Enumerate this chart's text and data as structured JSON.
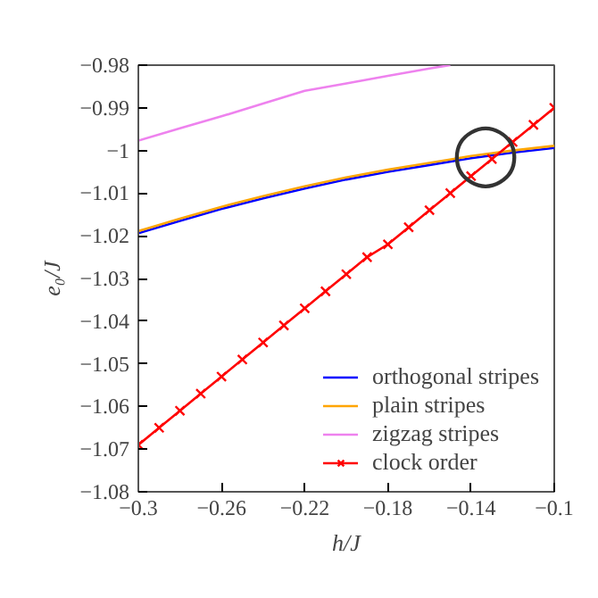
{
  "chart_data": {
    "type": "line",
    "xlabel": "h/J",
    "ylabel": "e₀/J",
    "x": [
      -0.3,
      -0.28,
      -0.26,
      -0.24,
      -0.22,
      -0.2,
      -0.18,
      -0.16,
      -0.14,
      -0.12,
      -0.1
    ],
    "series": [
      {
        "name": "orthogonal stripes",
        "color": "#0000ff",
        "values": [
          -1.0194,
          -1.0165,
          -1.0137,
          -1.0112,
          -1.0089,
          -1.0068,
          -1.005,
          -1.0034,
          -1.0018,
          -1.0005,
          -0.9994
        ]
      },
      {
        "name": "plain stripes",
        "color": "#ffa500",
        "values": [
          -1.0189,
          -1.016,
          -1.0132,
          -1.0107,
          -1.0084,
          -1.0063,
          -1.0045,
          -1.0029,
          -1.0013,
          -1.0,
          -0.9989
        ]
      },
      {
        "name": "zigzag stripes",
        "color": "#ee82ee",
        "x": [
          -0.3,
          -0.28,
          -0.26,
          -0.24,
          -0.22,
          -0.2,
          -0.18,
          -0.16,
          -0.15
        ],
        "values": [
          -0.9977,
          -0.9948,
          -0.992,
          -0.989,
          -0.986,
          -0.9843,
          -0.9825,
          -0.9808,
          -0.98
        ]
      },
      {
        "name": "clock order",
        "color": "#ff0000",
        "marker": "cross",
        "x": [
          -0.3,
          -0.29,
          -0.28,
          -0.27,
          -0.26,
          -0.25,
          -0.24,
          -0.23,
          -0.22,
          -0.21,
          -0.2,
          -0.19,
          -0.18,
          -0.17,
          -0.16,
          -0.15,
          -0.14,
          -0.13,
          -0.12,
          -0.11,
          -0.1
        ],
        "values": [
          -1.069,
          -1.065,
          -1.061,
          -1.057,
          -1.053,
          -1.049,
          -1.045,
          -1.041,
          -1.037,
          -1.033,
          -1.029,
          -1.025,
          -1.022,
          -1.018,
          -1.014,
          -1.01,
          -1.006,
          -1.002,
          -0.998,
          -0.994,
          -0.99
        ]
      }
    ],
    "annotations": [
      {
        "text": "◯",
        "x": -0.133,
        "y": -1.0008
      }
    ],
    "xlim": [
      -0.3,
      -0.1
    ],
    "ylim": [
      -1.08,
      -0.98
    ],
    "xticks": [
      {
        "value": -0.3,
        "label": "−0.3"
      },
      {
        "value": -0.26,
        "label": "−0.26"
      },
      {
        "value": -0.22,
        "label": "−0.22"
      },
      {
        "value": -0.18,
        "label": "−0.18"
      },
      {
        "value": -0.14,
        "label": "−0.14"
      },
      {
        "value": -0.1,
        "label": "−0.1"
      }
    ],
    "yticks": [
      {
        "value": -1.08,
        "label": "−1.08"
      },
      {
        "value": -1.07,
        "label": "−1.07"
      },
      {
        "value": -1.06,
        "label": "−1.06"
      },
      {
        "value": -1.05,
        "label": "−1.05"
      },
      {
        "value": -1.04,
        "label": "−1.04"
      },
      {
        "value": -1.03,
        "label": "−1.03"
      },
      {
        "value": -1.02,
        "label": "−1.02"
      },
      {
        "value": -1.01,
        "label": "−1.01"
      },
      {
        "value": -1.0,
        "label": "−1"
      },
      {
        "value": -0.99,
        "label": "−0.99"
      },
      {
        "value": -0.98,
        "label": "−0.98"
      }
    ],
    "grid": false,
    "legend": "bottom right",
    "marker": "none"
  }
}
